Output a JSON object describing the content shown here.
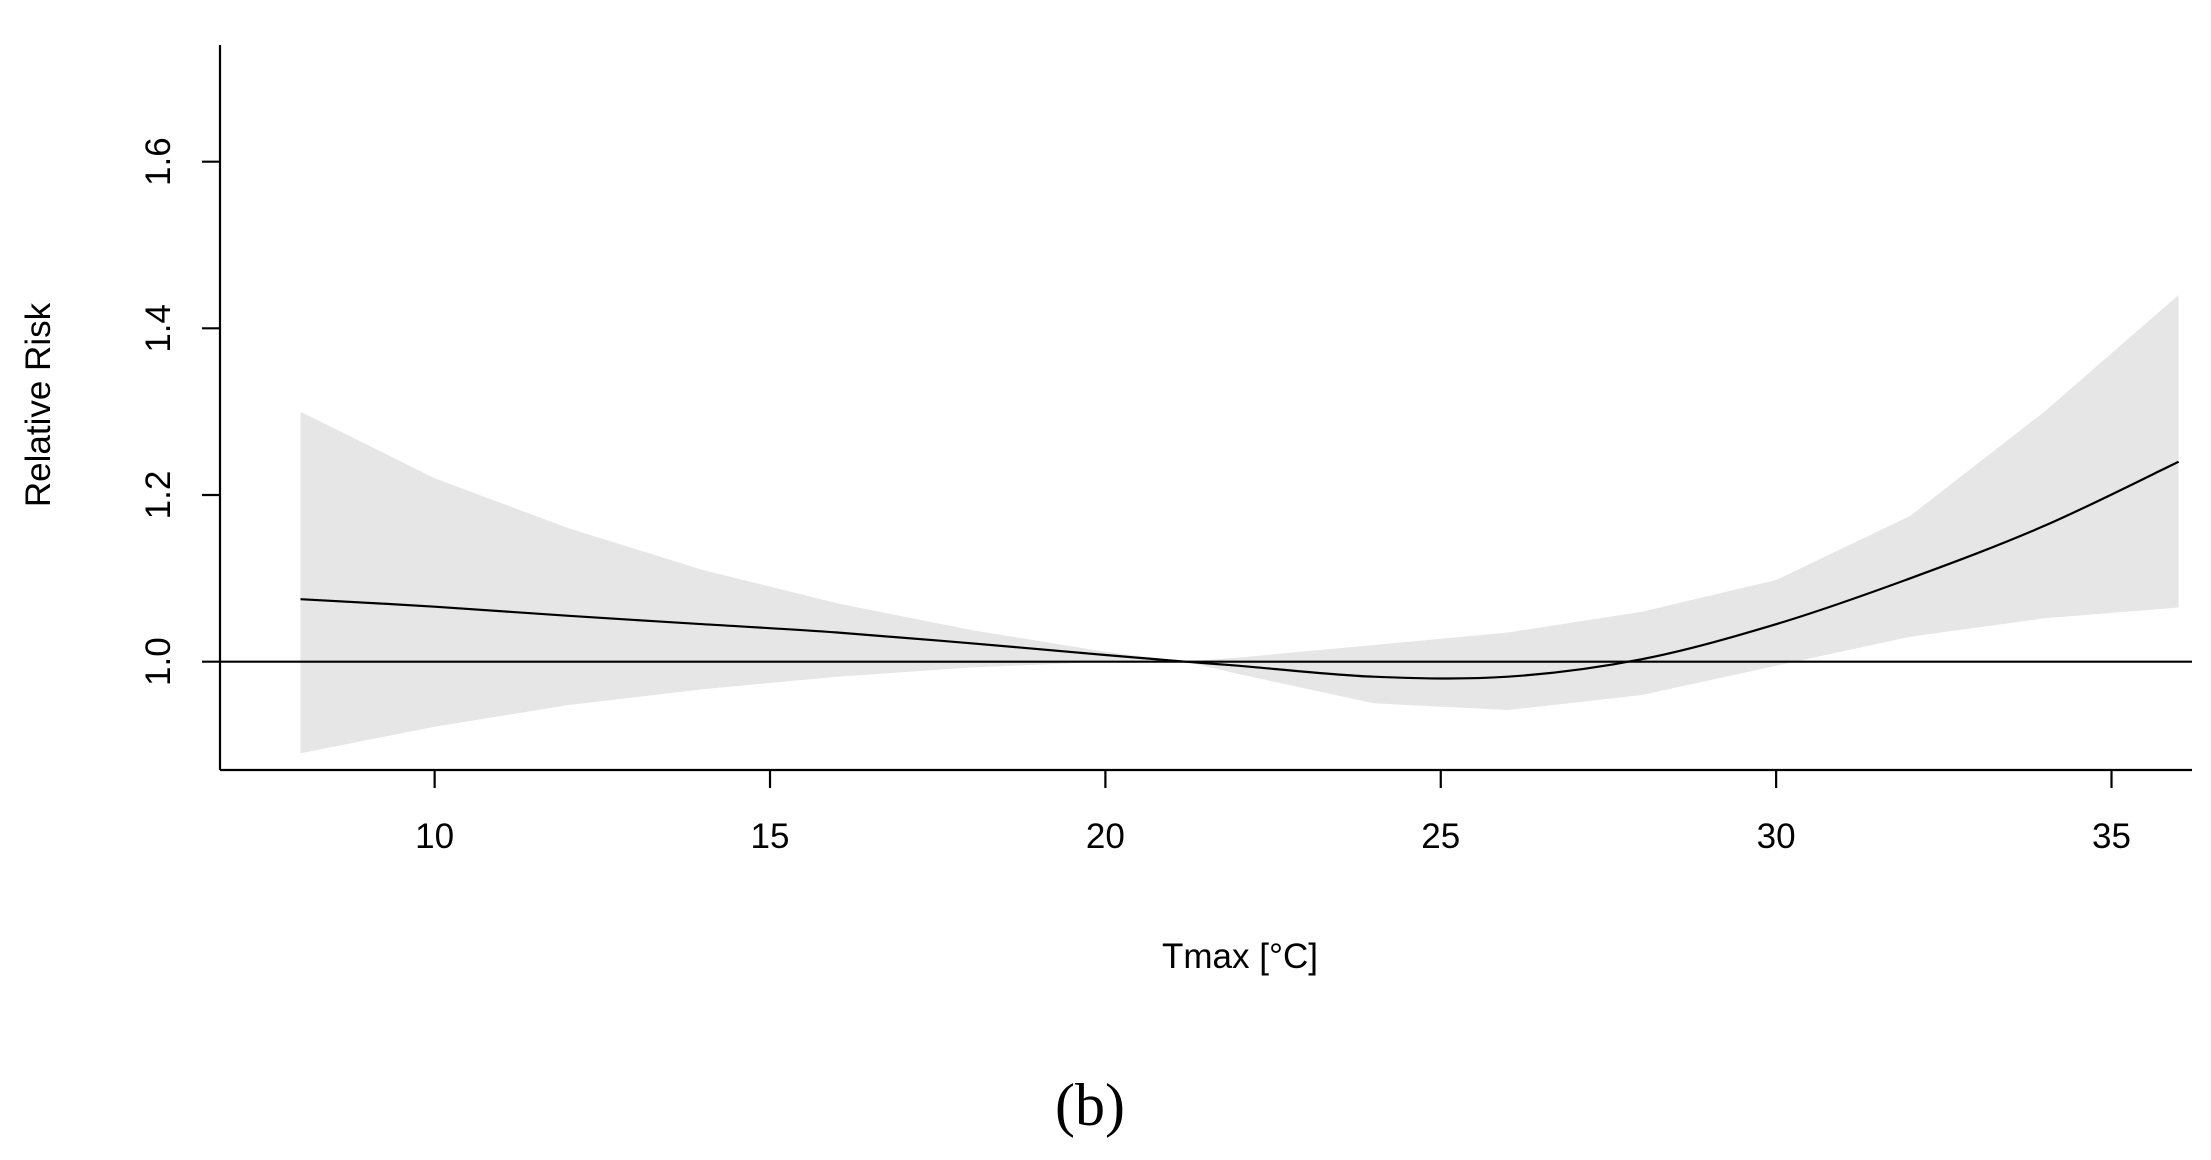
{
  "chart_data": {
    "type": "line",
    "title": "",
    "xlabel": "Tmax [°C]",
    "ylabel": "Relative Risk",
    "panel_label": "(b)",
    "xlim": [
      6.8,
      36.2
    ],
    "ylim": [
      0.87,
      1.74
    ],
    "x_ticks": [
      10,
      15,
      20,
      25,
      30,
      35
    ],
    "y_ticks": [
      1.0,
      1.2,
      1.4,
      1.6
    ],
    "reference_line": 1.0,
    "band_color": "#e6e6e6",
    "line_color": "#000000",
    "series": [
      {
        "name": "Relative Risk",
        "x": [
          8,
          10,
          12,
          14,
          16,
          18,
          20,
          21.2,
          22,
          24,
          26,
          28,
          30,
          32,
          34,
          36
        ],
        "y": [
          1.075,
          1.066,
          1.055,
          1.045,
          1.035,
          1.022,
          1.008,
          1.0,
          0.995,
          0.982,
          0.982,
          1.003,
          1.045,
          1.1,
          1.163,
          1.24
        ],
        "lower": [
          0.89,
          0.922,
          0.948,
          0.967,
          0.982,
          0.993,
          1.0,
          1.0,
          0.985,
          0.95,
          0.942,
          0.96,
          0.995,
          1.03,
          1.052,
          1.065
        ],
        "upper": [
          1.3,
          1.22,
          1.16,
          1.11,
          1.07,
          1.038,
          1.012,
          1.0,
          1.005,
          1.02,
          1.035,
          1.06,
          1.098,
          1.175,
          1.3,
          1.44
        ]
      }
    ]
  }
}
